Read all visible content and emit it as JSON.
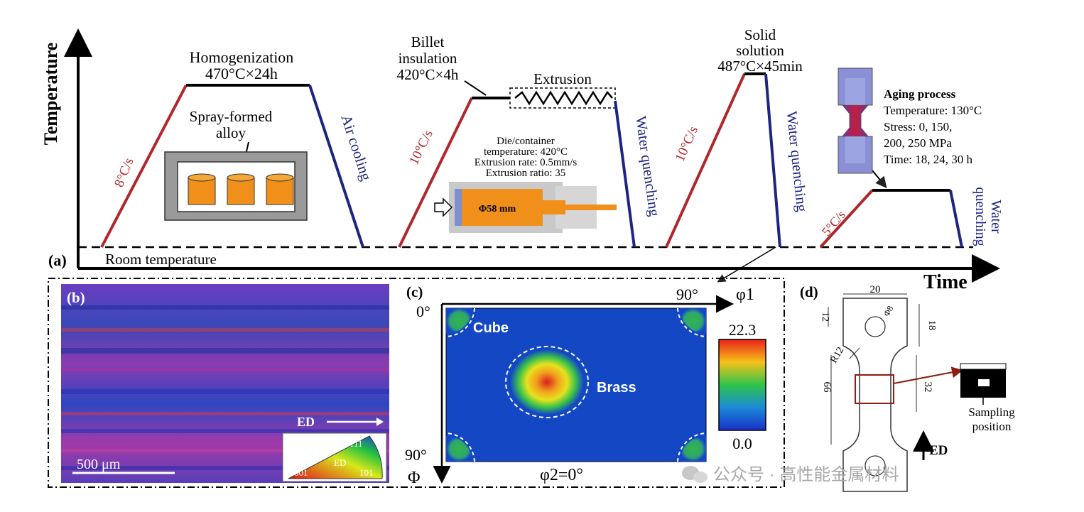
{
  "panel_a": {
    "label": "(a)",
    "y_axis": "Temperature",
    "x_axis": "Time",
    "room_temperature": "Room temperature",
    "heating_rates": [
      "8°C/s",
      "10°C/s",
      "10°C/s",
      "5°C/s"
    ],
    "cooling": [
      "Air cooling",
      "Water quenching",
      "Water quenching",
      "Water",
      "quenching"
    ],
    "homogenization": {
      "title": "Homogenization",
      "value": "470°C×24h"
    },
    "spray_formed": {
      "line1": "Spray-formed",
      "line2": "alloy"
    },
    "billet": {
      "line1": "Billet",
      "line2": "insulation",
      "line3": "420°C×4h"
    },
    "extrusion": {
      "title": "Extrusion",
      "line1": "Die/container",
      "line2": "temperature: 420°C",
      "line3": "Extrusion rate: 0.5mm/s",
      "line4": "Extrusion ratio: 35",
      "billet_dia": "Φ58 mm"
    },
    "solid_solution": {
      "line1": "Solid",
      "line2": "solution",
      "line3": "487°C×45min"
    },
    "aging": {
      "title": "Aging process",
      "line1": "Temperature: 130°C",
      "line2": "Stress: 0, 150,",
      "line3": "200, 250 MPa",
      "line4": "Time: 18, 24, 30 h"
    }
  },
  "panel_b": {
    "label": "(b)",
    "scale": "500 μm",
    "ed": "ED",
    "ipf": {
      "top": "111",
      "left": "001",
      "right": "101",
      "center": "ED"
    }
  },
  "panel_c": {
    "label": "(c)",
    "origin": "0°",
    "phi1_max": "90°",
    "phi1": "φ1",
    "Phi_max": "90°",
    "Phi": "Φ",
    "phi2": "φ2=0°",
    "cube": "Cube",
    "brass": "Brass",
    "scale_max": "22.3",
    "scale_min": "0.0"
  },
  "panel_d": {
    "label": "(d)",
    "dims": {
      "width": "20",
      "hole": "Φ8",
      "top": "12",
      "right_top": "18",
      "radius": "R12",
      "length": "66",
      "gauge": "32"
    },
    "sampling": {
      "line1": "Sampling",
      "line2": "position"
    },
    "ed": "ED"
  },
  "watermark": "公众号 · 高性能金属材料"
}
